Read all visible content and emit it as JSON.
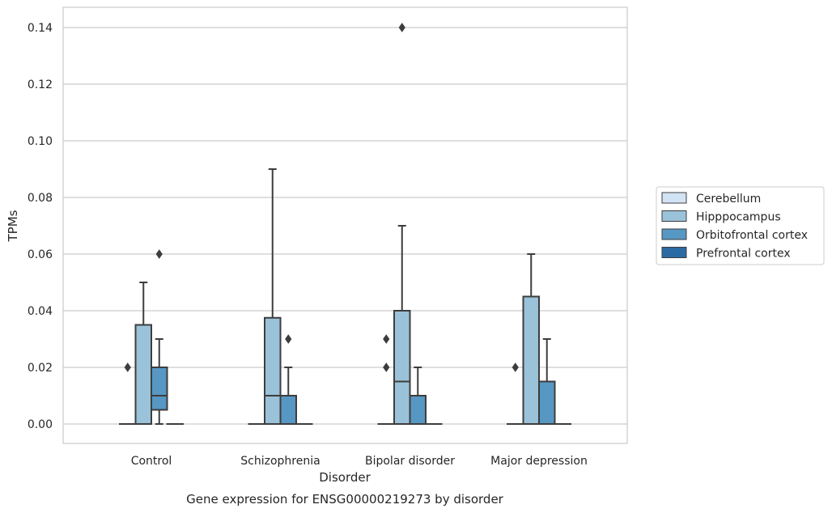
{
  "chart_data": {
    "type": "box",
    "xlabel": "Disorder",
    "ylabel": "TPMs",
    "caption": "Gene expression for ENSG00000219273 by disorder",
    "ylim": [
      -0.007,
      0.147
    ],
    "yticks": [
      0.0,
      0.02,
      0.04,
      0.06,
      0.08,
      0.1,
      0.12,
      0.14
    ],
    "ytick_labels": [
      "0.00",
      "0.02",
      "0.04",
      "0.06",
      "0.08",
      "0.10",
      "0.12",
      "0.14"
    ],
    "categories": [
      "Control",
      "Schizophrenia",
      "Bipolar disorder",
      "Major depression"
    ],
    "grid": "horizontal",
    "legend_position": "right",
    "series": [
      {
        "name": "Cerebellum",
        "color": "#d2e3f3",
        "boxes": [
          {
            "q1": 0.0,
            "median": 0.0,
            "q3": 0.0,
            "whisker_low": 0.0,
            "whisker_high": 0.0,
            "outliers": []
          },
          {
            "q1": 0.0,
            "median": 0.0,
            "q3": 0.0,
            "whisker_low": 0.0,
            "whisker_high": 0.0,
            "outliers": []
          },
          {
            "q1": 0.0,
            "median": 0.0,
            "q3": 0.0,
            "whisker_low": 0.0,
            "whisker_high": 0.0,
            "outliers": []
          },
          {
            "q1": 0.0,
            "median": 0.0,
            "q3": 0.0,
            "whisker_low": 0.0,
            "whisker_high": 0.0,
            "outliers": []
          }
        ]
      },
      {
        "name": "Hipppocampus",
        "color": "#9ac2d9",
        "boxes": [
          {
            "q1": 0.0,
            "median": 0.0,
            "q3": 0.035,
            "whisker_low": 0.0,
            "whisker_high": 0.05,
            "outliers": []
          },
          {
            "q1": 0.0,
            "median": 0.01,
            "q3": 0.0375,
            "whisker_low": 0.0,
            "whisker_high": 0.09,
            "outliers": []
          },
          {
            "q1": 0.0,
            "median": 0.015,
            "q3": 0.04,
            "whisker_low": 0.0,
            "whisker_high": 0.07,
            "outliers": [
              0.14
            ]
          },
          {
            "q1": 0.0,
            "median": 0.0,
            "q3": 0.045,
            "whisker_low": 0.0,
            "whisker_high": 0.06,
            "outliers": []
          }
        ]
      },
      {
        "name": "Orbitofrontal cortex",
        "color": "#5797c3",
        "boxes": [
          {
            "q1": 0.005,
            "median": 0.01,
            "q3": 0.02,
            "whisker_low": 0.0,
            "whisker_high": 0.03,
            "outliers": [
              0.06
            ]
          },
          {
            "q1": 0.0,
            "median": 0.0,
            "q3": 0.01,
            "whisker_low": 0.0,
            "whisker_high": 0.02,
            "outliers": [
              0.03
            ]
          },
          {
            "q1": 0.0,
            "median": 0.0,
            "q3": 0.01,
            "whisker_low": 0.0,
            "whisker_high": 0.02,
            "outliers": []
          },
          {
            "q1": 0.0,
            "median": 0.0,
            "q3": 0.015,
            "whisker_low": 0.0,
            "whisker_high": 0.03,
            "outliers": []
          }
        ]
      },
      {
        "name": "Prefrontal cortex",
        "color": "#2c6aa4",
        "boxes": [
          {
            "q1": 0.0,
            "median": 0.0,
            "q3": 0.0,
            "whisker_low": 0.0,
            "whisker_high": 0.0,
            "outliers": []
          },
          {
            "q1": 0.0,
            "median": 0.0,
            "q3": 0.0,
            "whisker_low": 0.0,
            "whisker_high": 0.0,
            "outliers": []
          },
          {
            "q1": 0.0,
            "median": 0.0,
            "q3": 0.0,
            "whisker_low": 0.0,
            "whisker_high": 0.0,
            "outliers": []
          },
          {
            "q1": 0.0,
            "median": 0.0,
            "q3": 0.0,
            "whisker_low": 0.0,
            "whisker_high": 0.0,
            "outliers": []
          }
        ]
      }
    ],
    "extra_outliers": [
      {
        "category": "Control",
        "value": 0.02,
        "series": "Cerebellum"
      },
      {
        "category": "Bipolar disorder",
        "value": 0.03,
        "series": "Cerebellum"
      },
      {
        "category": "Bipolar disorder",
        "value": 0.02,
        "series": "Cerebellum"
      },
      {
        "category": "Major depression",
        "value": 0.02,
        "series": "Cerebellum"
      }
    ]
  }
}
